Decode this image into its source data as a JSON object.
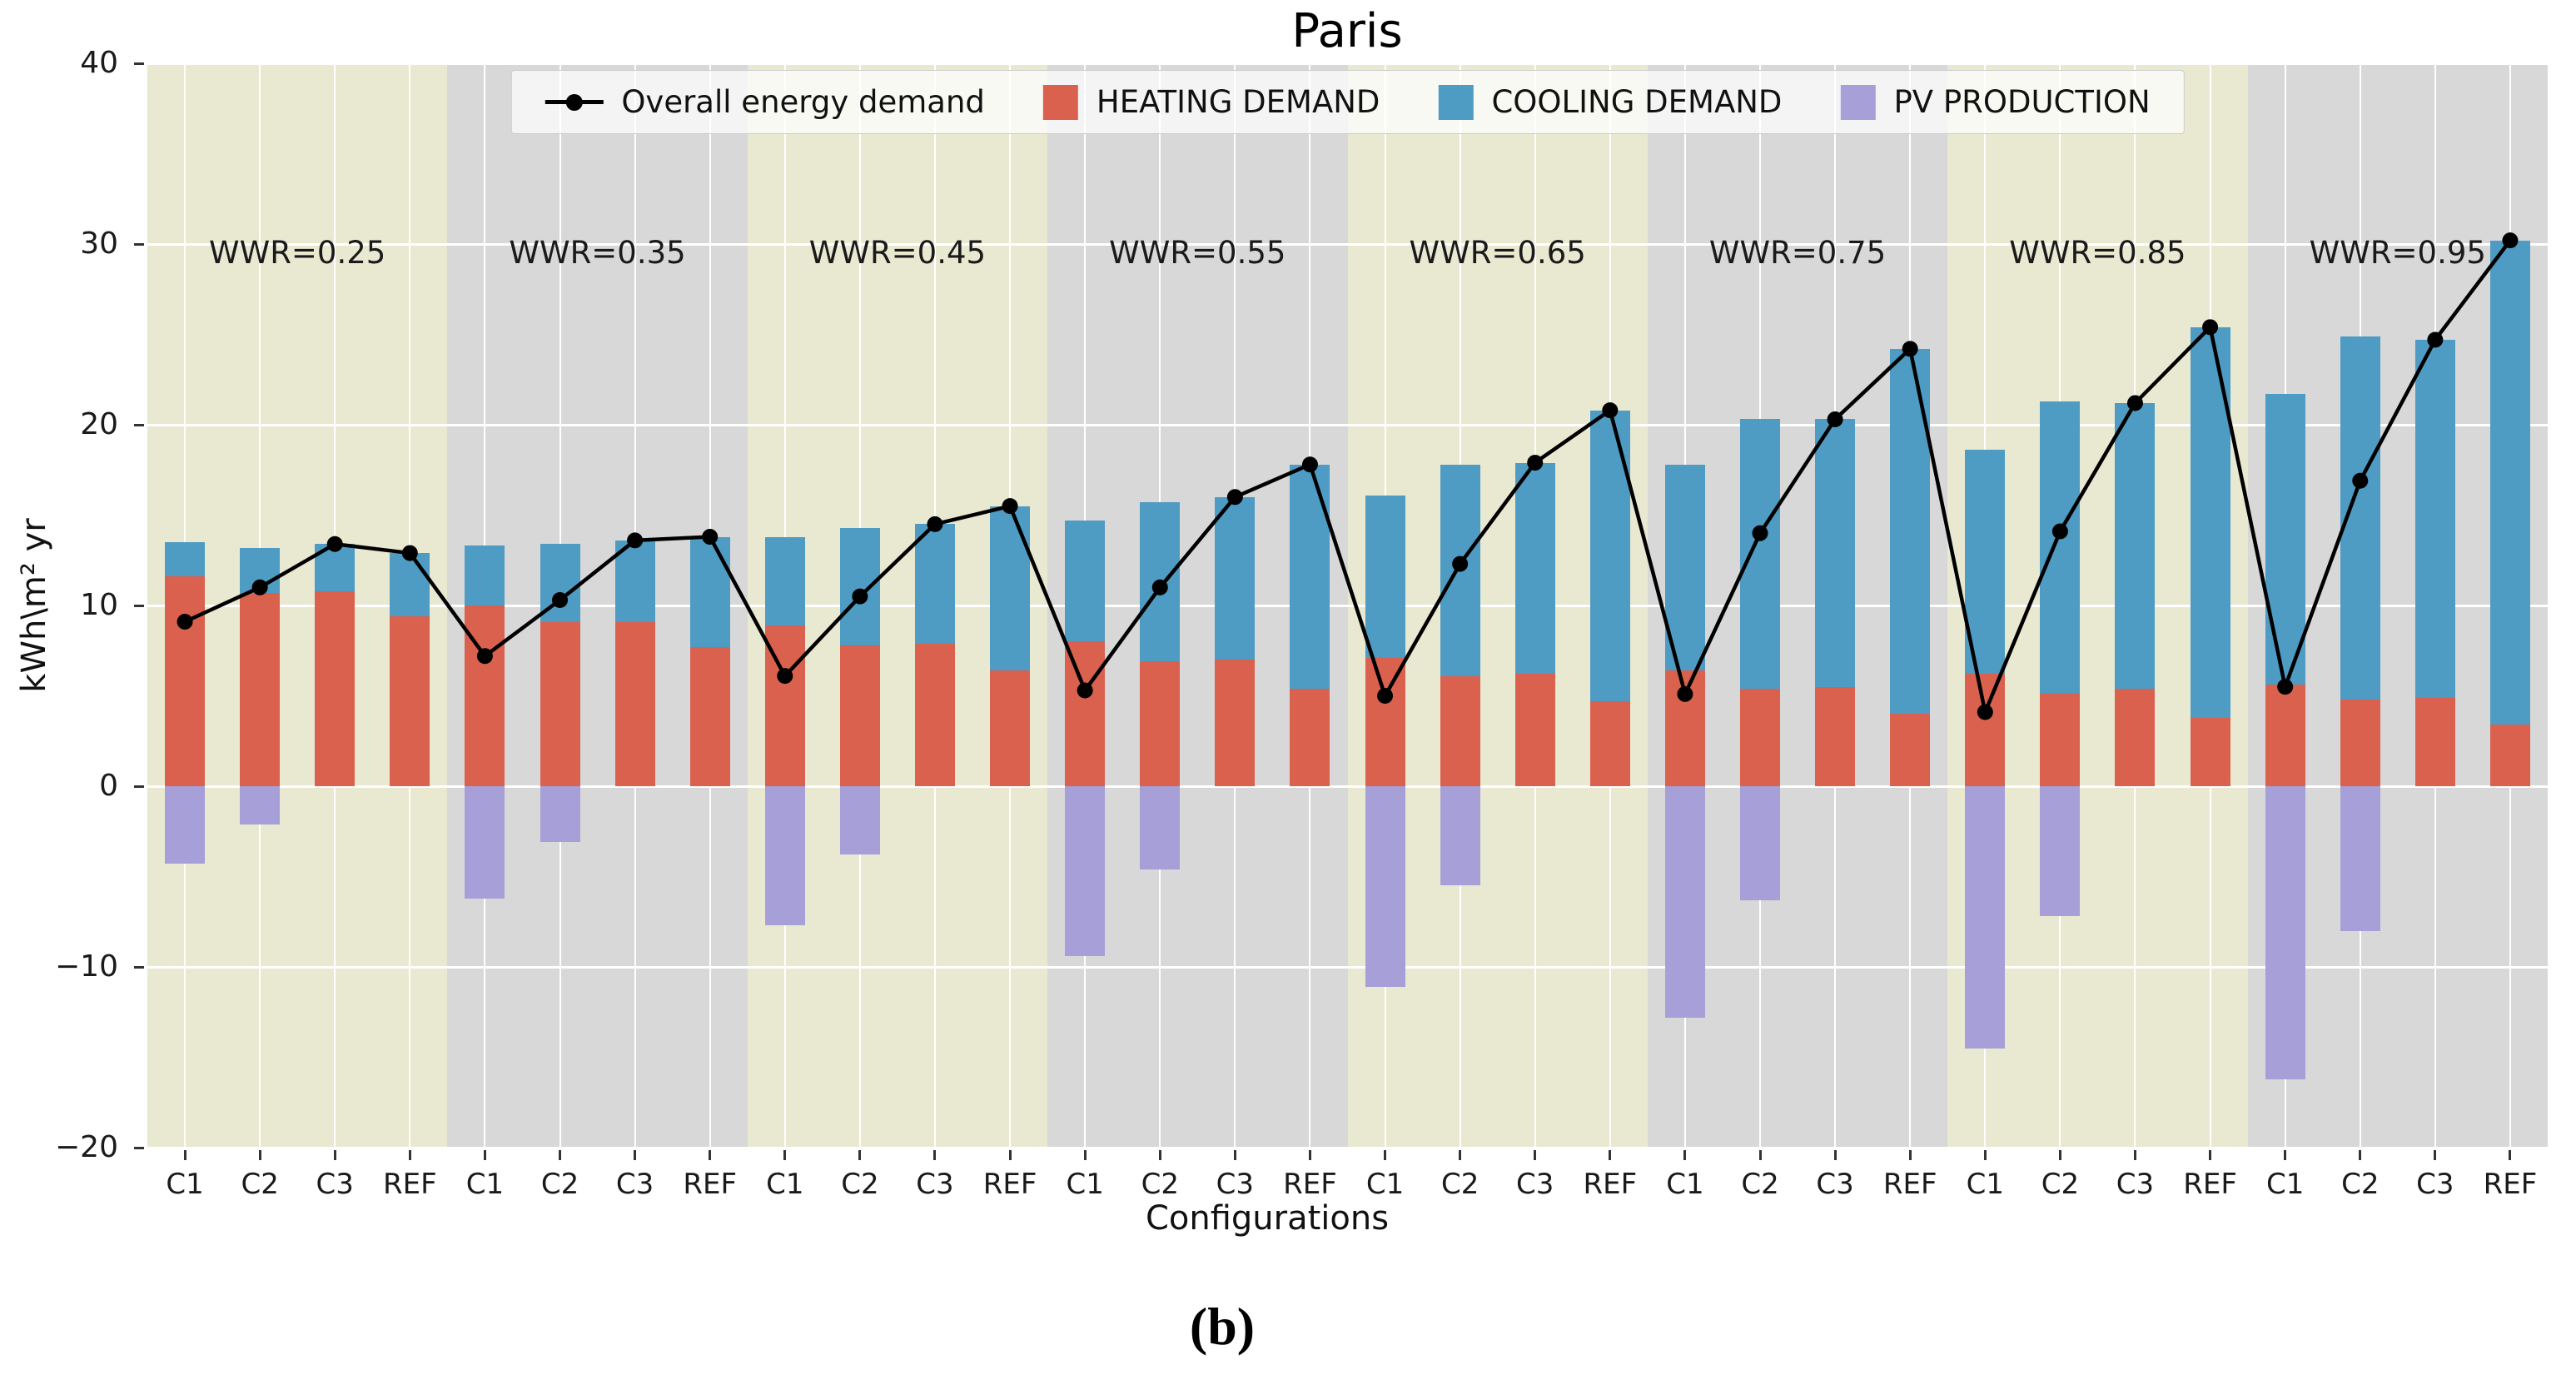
{
  "chart_data": {
    "type": "bar",
    "title": "Paris",
    "ylabel": "kWh\\m² yr",
    "xlabel": "Configurations",
    "caption": "(b)",
    "ylim": [
      -20,
      40
    ],
    "yticks": [
      40,
      30,
      20,
      10,
      0,
      -10,
      -20
    ],
    "grid": true,
    "legend_position": "top-center",
    "configs": [
      "C1",
      "C2",
      "C3",
      "REF"
    ],
    "legend": [
      {
        "label": "Overall energy demand",
        "color": "#000000",
        "marker": "line-dot"
      },
      {
        "label": "HEATING DEMAND",
        "color": "#d9614e",
        "marker": "square"
      },
      {
        "label": "COOLING DEMAND",
        "color": "#4e9bc3",
        "marker": "square"
      },
      {
        "label": "PV PRODUCTION",
        "color": "#a79fd7",
        "marker": "square"
      }
    ],
    "colors": {
      "heating": "#d9614e",
      "cooling": "#4e9bc3",
      "pv": "#a79fd7",
      "line": "#000000",
      "band_yellow": "#e9e9d2",
      "band_gray": "#d8d8d8",
      "gridline": "#ffffff"
    },
    "groups": [
      {
        "wwr": "WWR=0.25",
        "bars": [
          {
            "label": "C1",
            "heating": 11.6,
            "cooling": 1.9,
            "pv": -4.3,
            "overall": 9.1
          },
          {
            "label": "C2",
            "heating": 10.7,
            "cooling": 2.5,
            "pv": -2.1,
            "overall": 11.0
          },
          {
            "label": "C3",
            "heating": 10.8,
            "cooling": 2.6,
            "pv": 0,
            "overall": 13.4
          },
          {
            "label": "REF",
            "heating": 9.4,
            "cooling": 3.5,
            "pv": 0,
            "overall": 12.9
          }
        ]
      },
      {
        "wwr": "WWR=0.35",
        "bars": [
          {
            "label": "C1",
            "heating": 10.0,
            "cooling": 3.3,
            "pv": -6.2,
            "overall": 7.2
          },
          {
            "label": "C2",
            "heating": 9.1,
            "cooling": 4.3,
            "pv": -3.1,
            "overall": 10.3
          },
          {
            "label": "C3",
            "heating": 9.1,
            "cooling": 4.5,
            "pv": 0,
            "overall": 13.6
          },
          {
            "label": "REF",
            "heating": 7.7,
            "cooling": 6.1,
            "pv": 0,
            "overall": 13.8
          }
        ]
      },
      {
        "wwr": "WWR=0.45",
        "bars": [
          {
            "label": "C1",
            "heating": 8.9,
            "cooling": 4.9,
            "pv": -7.7,
            "overall": 6.1
          },
          {
            "label": "C2",
            "heating": 7.8,
            "cooling": 6.5,
            "pv": -3.8,
            "overall": 10.5
          },
          {
            "label": "C3",
            "heating": 7.9,
            "cooling": 6.6,
            "pv": 0,
            "overall": 14.5
          },
          {
            "label": "REF",
            "heating": 6.4,
            "cooling": 9.1,
            "pv": 0,
            "overall": 15.5
          }
        ]
      },
      {
        "wwr": "WWR=0.55",
        "bars": [
          {
            "label": "C1",
            "heating": 8.0,
            "cooling": 6.7,
            "pv": -9.4,
            "overall": 5.3
          },
          {
            "label": "C2",
            "heating": 6.9,
            "cooling": 8.8,
            "pv": -4.6,
            "overall": 11.0
          },
          {
            "label": "C3",
            "heating": 7.0,
            "cooling": 9.0,
            "pv": 0,
            "overall": 16.0
          },
          {
            "label": "REF",
            "heating": 5.4,
            "cooling": 12.4,
            "pv": 0,
            "overall": 17.8
          }
        ]
      },
      {
        "wwr": "WWR=0.65",
        "bars": [
          {
            "label": "C1",
            "heating": 7.1,
            "cooling": 9.0,
            "pv": -11.1,
            "overall": 5.0
          },
          {
            "label": "C2",
            "heating": 6.1,
            "cooling": 11.7,
            "pv": -5.5,
            "overall": 12.3
          },
          {
            "label": "C3",
            "heating": 6.2,
            "cooling": 11.7,
            "pv": 0,
            "overall": 17.9
          },
          {
            "label": "REF",
            "heating": 4.7,
            "cooling": 16.1,
            "pv": 0,
            "overall": 20.8
          }
        ]
      },
      {
        "wwr": "WWR=0.75",
        "bars": [
          {
            "label": "C1",
            "heating": 6.4,
            "cooling": 11.4,
            "pv": -12.8,
            "overall": 5.1
          },
          {
            "label": "C2",
            "heating": 5.4,
            "cooling": 14.9,
            "pv": -6.3,
            "overall": 14.0
          },
          {
            "label": "C3",
            "heating": 5.5,
            "cooling": 14.8,
            "pv": 0,
            "overall": 20.3
          },
          {
            "label": "REF",
            "heating": 4.0,
            "cooling": 20.2,
            "pv": 0,
            "overall": 24.2
          }
        ]
      },
      {
        "wwr": "WWR=0.85",
        "bars": [
          {
            "label": "C1",
            "heating": 6.2,
            "cooling": 12.4,
            "pv": -14.5,
            "overall": 4.1
          },
          {
            "label": "C2",
            "heating": 5.1,
            "cooling": 16.2,
            "pv": -7.2,
            "overall": 14.1
          },
          {
            "label": "C3",
            "heating": 5.4,
            "cooling": 15.8,
            "pv": 0,
            "overall": 21.2
          },
          {
            "label": "REF",
            "heating": 3.8,
            "cooling": 21.6,
            "pv": 0,
            "overall": 25.4
          }
        ]
      },
      {
        "wwr": "WWR=0.95",
        "bars": [
          {
            "label": "C1",
            "heating": 5.6,
            "cooling": 16.1,
            "pv": -16.2,
            "overall": 5.5
          },
          {
            "label": "C2",
            "heating": 4.8,
            "cooling": 20.1,
            "pv": -8.0,
            "overall": 16.9
          },
          {
            "label": "C3",
            "heating": 4.9,
            "cooling": 19.8,
            "pv": 0,
            "overall": 24.7
          },
          {
            "label": "REF",
            "heating": 3.4,
            "cooling": 26.8,
            "pv": 0,
            "overall": 30.2
          }
        ]
      }
    ]
  }
}
